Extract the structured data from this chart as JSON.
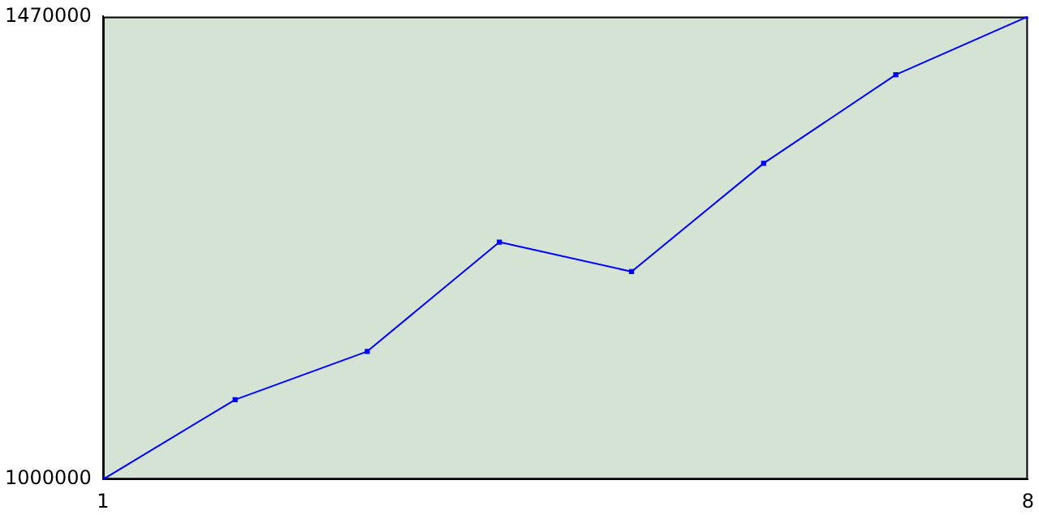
{
  "chart_data": {
    "type": "line",
    "x": [
      1,
      2,
      3,
      4,
      5,
      6,
      7,
      8
    ],
    "series": [
      {
        "color": "#0000ff",
        "values": [
          1000000,
          1081000,
          1130000,
          1241000,
          1211000,
          1321000,
          1411000,
          1470000
        ]
      }
    ],
    "xlim": [
      1,
      8
    ],
    "xticks": [
      1,
      8
    ],
    "ylim": [
      1000000,
      1470000
    ],
    "yticks": [
      1000000,
      1470000
    ],
    "grid": false,
    "legend": false,
    "marker": "square",
    "line_style": "solid"
  }
}
